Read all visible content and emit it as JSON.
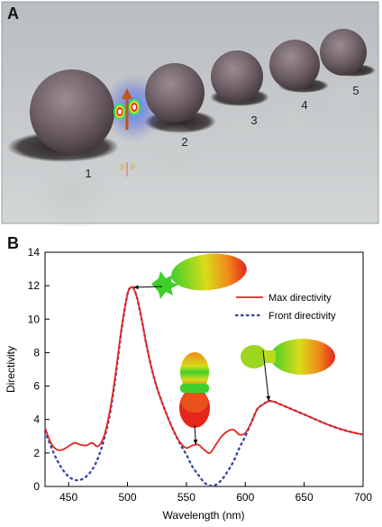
{
  "figure": {
    "panel_a": {
      "label": "A",
      "sphere_labels": [
        "1",
        "2",
        "3",
        "4",
        "5"
      ]
    },
    "panel_b": {
      "label": "B"
    }
  },
  "chart_data": {
    "type": "line",
    "title": "",
    "xlabel": "Wavelength (nm)",
    "ylabel": "Directivity",
    "xlim": [
      430,
      700
    ],
    "ylim": [
      0,
      14
    ],
    "xticks": [
      450,
      500,
      550,
      600,
      650,
      700
    ],
    "yticks": [
      0,
      2,
      4,
      6,
      8,
      10,
      12,
      14
    ],
    "legend_position": "right",
    "grid": false,
    "series": [
      {
        "name": "Max directivity",
        "style": "solid",
        "color": "#e3261f",
        "x": [
          430,
          435,
          440,
          445,
          450,
          455,
          460,
          465,
          470,
          475,
          480,
          485,
          490,
          495,
          500,
          503,
          505,
          508,
          512,
          516,
          520,
          525,
          530,
          535,
          540,
          545,
          550,
          555,
          560,
          565,
          570,
          575,
          580,
          585,
          590,
          595,
          600,
          605,
          610,
          615,
          620,
          625,
          630,
          640,
          650,
          660,
          670,
          680,
          690,
          700
        ],
        "y": [
          3.5,
          2.6,
          2.2,
          2.2,
          2.4,
          2.6,
          2.5,
          2.45,
          2.6,
          2.4,
          3.0,
          4.5,
          6.8,
          9.5,
          11.5,
          11.9,
          11.85,
          11.3,
          10.0,
          8.5,
          7.2,
          5.9,
          4.9,
          4.0,
          3.2,
          2.6,
          2.3,
          2.45,
          2.5,
          2.2,
          2.0,
          2.5,
          3.0,
          3.3,
          3.4,
          3.1,
          3.2,
          3.8,
          4.6,
          4.9,
          5.1,
          5.05,
          4.9,
          4.6,
          4.3,
          4.0,
          3.7,
          3.45,
          3.25,
          3.1
        ]
      },
      {
        "name": "Front directivity",
        "style": "dotted",
        "color": "#3a46a8",
        "x": [
          430,
          435,
          440,
          445,
          450,
          455,
          460,
          465,
          470,
          475,
          480,
          485,
          490,
          495,
          500,
          503,
          505,
          508,
          512,
          516,
          520,
          525,
          530,
          535,
          540,
          545,
          550,
          555,
          560,
          565,
          570,
          575,
          580,
          585,
          590,
          595,
          600,
          605,
          610,
          615,
          620,
          625,
          630,
          640,
          650,
          660,
          670,
          680,
          690,
          700
        ],
        "y": [
          3.3,
          2.4,
          1.6,
          1.0,
          0.6,
          0.4,
          0.4,
          0.6,
          1.0,
          1.7,
          2.8,
          4.3,
          6.6,
          9.4,
          11.5,
          11.9,
          11.85,
          11.3,
          10.0,
          8.5,
          7.2,
          5.9,
          4.9,
          4.0,
          3.2,
          2.5,
          1.9,
          1.2,
          0.7,
          0.25,
          0.05,
          0.1,
          0.4,
          0.9,
          1.5,
          2.3,
          3.0,
          3.8,
          4.6,
          4.9,
          5.1,
          5.05,
          4.9,
          4.6,
          4.3,
          4.0,
          3.7,
          3.45,
          3.25,
          3.1
        ]
      }
    ],
    "annotations": [
      {
        "type": "arrow",
        "note": "radiation pattern at peak",
        "target": [
          505,
          11.9
        ]
      },
      {
        "type": "arrow",
        "note": "radiation pattern at dip",
        "target": [
          558,
          2.5
        ]
      },
      {
        "type": "arrow",
        "note": "radiation pattern at shoulder",
        "target": [
          620,
          5.1
        ]
      }
    ]
  }
}
